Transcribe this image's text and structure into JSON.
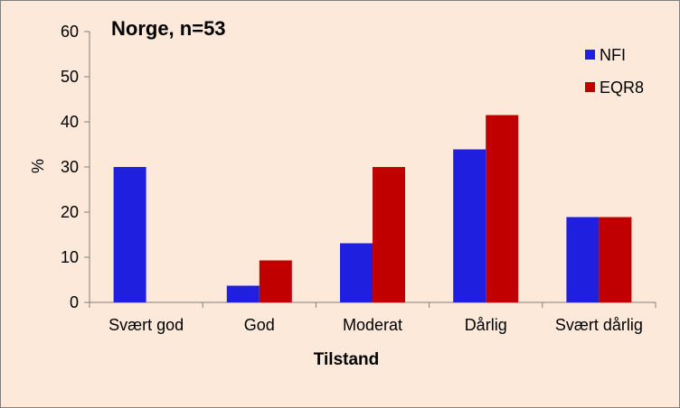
{
  "chart_data": {
    "type": "bar",
    "title": "Norge, n=53",
    "xlabel": "Tilstand",
    "ylabel": "%",
    "ylim": [
      0,
      60
    ],
    "yticks": [
      0,
      10,
      20,
      30,
      40,
      50,
      60
    ],
    "categories": [
      "Svært god",
      "God",
      "Moderat",
      "Dårlig",
      "Svært dårlig"
    ],
    "series": [
      {
        "name": "NFI",
        "color": "#1f1fe0",
        "values": [
          30.0,
          3.7,
          13.1,
          33.9,
          18.9
        ]
      },
      {
        "name": "EQR8",
        "color": "#c00000",
        "values": [
          0.0,
          9.3,
          30.0,
          41.5,
          18.9
        ]
      }
    ],
    "grid": false,
    "legend": "top-right"
  }
}
